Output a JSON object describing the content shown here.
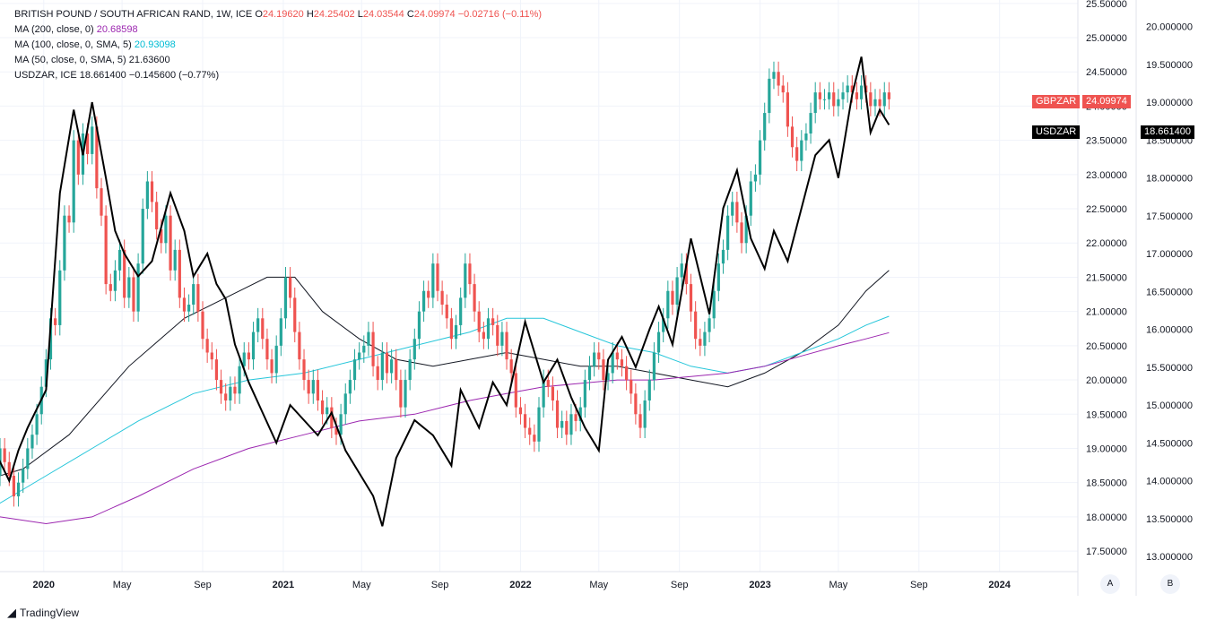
{
  "legend": {
    "symbol": "BRITISH POUND / SOUTH AFRICAN RAND, 1W, ICE",
    "open_label": "O",
    "open": "24.19620",
    "high_label": "H",
    "high": "24.25402",
    "low_label": "L",
    "low": "24.03544",
    "close_label": "C",
    "close": "24.09974",
    "change": "−0.02716 (−0.11%)",
    "ma200_label": "MA (200, close, 0)",
    "ma200_value": "20.68598",
    "ma100_label": "MA (100, close, 0, SMA, 5)",
    "ma100_value": "20.93098",
    "ma50_label": "MA (50, close, 0, SMA, 5)",
    "ma50_value": "21.63600",
    "usdzar_label": "USDZAR, ICE",
    "usdzar_value": "18.661400",
    "usdzar_change": "−0.145600 (−0.77%)"
  },
  "tags": {
    "gbp_name": "GBPZAR",
    "gbp_value": "24.09974",
    "usd_name": "USDZAR",
    "usd_value": "18.661400"
  },
  "buttons": {
    "a": "A",
    "b": "B"
  },
  "brand": "TradingView",
  "colors": {
    "up": "#26a69a",
    "down": "#ef5350",
    "ma50": "#131722",
    "ma100": "#26c6da",
    "ma200": "#9c27b0",
    "usdzar": "#000000",
    "grid": "#f0f3fa"
  },
  "chart_data": {
    "type": "candlestick",
    "title": "BRITISH POUND / SOUTH AFRICAN RAND, 1W, ICE",
    "primary_axis": {
      "ticks": [
        "17.50000",
        "18.00000",
        "18.50000",
        "19.00000",
        "19.50000",
        "20.00000",
        "20.50000",
        "21.00000",
        "21.50000",
        "22.00000",
        "22.50000",
        "23.00000",
        "23.50000",
        "24.00000",
        "24.50000",
        "25.00000",
        "25.50000"
      ],
      "ylim": [
        17.2,
        25.55
      ]
    },
    "secondary_axis": {
      "ticks": [
        "13.000000",
        "13.500000",
        "14.000000",
        "14.500000",
        "15.000000",
        "15.500000",
        "16.000000",
        "16.500000",
        "17.000000",
        "17.500000",
        "18.000000",
        "18.500000",
        "19.000000",
        "19.500000",
        "20.000000"
      ],
      "ylim": [
        12.8,
        20.35
      ]
    },
    "x_ticks": [
      {
        "label": "2020",
        "t": 19.5,
        "bold": true
      },
      {
        "label": "May",
        "t": 36.5,
        "bold": false
      },
      {
        "label": "Sep",
        "t": 54,
        "bold": false
      },
      {
        "label": "2021",
        "t": 71.5,
        "bold": true
      },
      {
        "label": "May",
        "t": 88.5,
        "bold": false
      },
      {
        "label": "Sep",
        "t": 105.5,
        "bold": false
      },
      {
        "label": "2022",
        "t": 123,
        "bold": true
      },
      {
        "label": "May",
        "t": 140,
        "bold": false
      },
      {
        "label": "Sep",
        "t": 157.5,
        "bold": false
      },
      {
        "label": "2023",
        "t": 175,
        "bold": true
      },
      {
        "label": "May",
        "t": 192,
        "bold": false
      },
      {
        "label": "Sep",
        "t": 209.5,
        "bold": false
      },
      {
        "label": "2024",
        "t": 227,
        "bold": true
      }
    ],
    "x_range": [
      10,
      244
    ],
    "gbpzar_close": [
      19.6,
      19.2,
      19.4,
      18.9,
      19.0,
      18.8,
      19.1,
      18.7,
      18.9,
      18.6,
      19.0,
      18.8,
      18.6,
      18.3,
      18.5,
      18.7,
      19.0,
      19.2,
      19.5,
      19.9,
      20.3,
      20.9,
      20.8,
      21.6,
      22.4,
      22.3,
      23.5,
      23.0,
      23.6,
      23.3,
      23.7,
      22.8,
      22.4,
      21.4,
      21.3,
      21.6,
      21.9,
      21.2,
      21.5,
      21.0,
      21.7,
      22.5,
      22.9,
      22.6,
      22.2,
      22.0,
      22.4,
      21.6,
      21.9,
      21.2,
      21.0,
      21.1,
      21.4,
      21.0,
      20.6,
      20.4,
      20.3,
      20.0,
      19.8,
      19.7,
      19.9,
      19.8,
      20.2,
      20.4,
      20.3,
      20.7,
      20.9,
      20.6,
      20.3,
      20.1,
      20.5,
      20.9,
      21.5,
      21.2,
      20.7,
      20.3,
      20.0,
      19.8,
      20.0,
      19.7,
      19.5,
      19.6,
      19.3,
      19.2,
      19.5,
      19.8,
      20.0,
      20.3,
      20.4,
      20.5,
      20.7,
      20.2,
      20.0,
      20.4,
      20.1,
      20.3,
      20.0,
      19.6,
      20.0,
      20.3,
      20.6,
      21.0,
      21.3,
      21.2,
      21.7,
      21.3,
      21.1,
      20.9,
      20.6,
      20.8,
      21.2,
      21.7,
      21.4,
      21.0,
      20.7,
      20.6,
      20.9,
      20.8,
      20.5,
      20.7,
      20.3,
      20.1,
      19.6,
      19.5,
      19.3,
      19.2,
      19.1,
      19.6,
      20.0,
      19.9,
      19.7,
      19.3,
      19.4,
      19.2,
      19.5,
      19.4,
      19.6,
      20.0,
      20.2,
      20.4,
      20.3,
      20.0,
      20.1,
      20.4,
      20.3,
      20.2,
      20.0,
      19.8,
      19.5,
      19.3,
      19.7,
      20.0,
      20.4,
      20.7,
      20.9,
      21.3,
      21.1,
      21.5,
      21.7,
      21.4,
      21.0,
      20.6,
      20.5,
      20.7,
      20.9,
      21.3,
      21.7,
      21.9,
      22.4,
      22.6,
      22.3,
      22.0,
      22.4,
      22.9,
      23.0,
      23.5,
      23.9,
      24.4,
      24.5,
      24.3,
      24.2,
      23.7,
      23.4,
      23.2,
      23.5,
      23.6,
      23.9,
      24.2,
      24.1,
      24.1,
      24.2,
      24.0,
      24.1,
      24.2,
      24.3,
      24.2,
      24.1,
      24.3,
      24.2,
      24.0,
      24.1,
      24.0,
      24.2,
      24.1,
      24.1,
      24.0,
      24.2,
      24.1,
      24.0,
      24.1,
      24.2,
      24.1,
      24.0,
      24.1,
      24.2,
      24.1,
      24.0,
      24.1,
      24.1,
      24.1,
      24.0,
      24.1,
      24.1,
      24.1,
      24.0,
      24.1,
      24.1,
      24.1,
      24.1,
      24.1,
      24.1,
      24.1,
      24.0,
      24.1,
      24.1,
      24.1,
      24.1,
      24.1,
      24.1,
      24.1,
      24.1,
      24.1,
      24.1
    ],
    "series": [
      {
        "name": "USDZAR, ICE",
        "axis": "secondary",
        "points": [
          [
            0,
            15.0
          ],
          [
            4,
            15.2
          ],
          [
            8,
            14.5
          ],
          [
            12,
            14.0
          ],
          [
            14,
            14.4
          ],
          [
            16,
            14.7
          ],
          [
            20,
            15.2
          ],
          [
            23,
            17.8
          ],
          [
            26,
            18.9
          ],
          [
            28,
            18.3
          ],
          [
            30,
            19.0
          ],
          [
            33,
            18.0
          ],
          [
            35,
            17.3
          ],
          [
            37,
            17.0
          ],
          [
            40,
            16.7
          ],
          [
            43,
            16.9
          ],
          [
            47,
            17.8
          ],
          [
            50,
            17.3
          ],
          [
            52,
            16.7
          ],
          [
            55,
            17.0
          ],
          [
            57,
            16.6
          ],
          [
            59,
            16.4
          ],
          [
            61,
            15.8
          ],
          [
            64,
            15.3
          ],
          [
            67,
            14.9
          ],
          [
            70,
            14.5
          ],
          [
            73,
            15.0
          ],
          [
            76,
            14.8
          ],
          [
            79,
            14.6
          ],
          [
            82,
            14.9
          ],
          [
            85,
            14.4
          ],
          [
            88,
            14.1
          ],
          [
            91,
            13.8
          ],
          [
            93,
            13.4
          ],
          [
            96,
            14.3
          ],
          [
            100,
            14.8
          ],
          [
            104,
            14.6
          ],
          [
            108,
            14.2
          ],
          [
            110,
            15.2
          ],
          [
            114,
            14.7
          ],
          [
            117,
            15.3
          ],
          [
            120,
            15.0
          ],
          [
            124,
            16.1
          ],
          [
            128,
            15.3
          ],
          [
            131,
            15.6
          ],
          [
            134,
            15.1
          ],
          [
            137,
            14.7
          ],
          [
            140,
            14.4
          ],
          [
            142,
            15.6
          ],
          [
            145,
            15.9
          ],
          [
            148,
            15.5
          ],
          [
            151,
            16.0
          ],
          [
            153,
            16.3
          ],
          [
            156,
            15.8
          ],
          [
            160,
            17.2
          ],
          [
            162,
            16.7
          ],
          [
            164,
            16.2
          ],
          [
            167,
            17.6
          ],
          [
            170,
            18.1
          ],
          [
            173,
            17.2
          ],
          [
            176,
            16.8
          ],
          [
            178,
            17.3
          ],
          [
            181,
            16.9
          ],
          [
            184,
            17.6
          ],
          [
            187,
            18.3
          ],
          [
            190,
            18.5
          ],
          [
            192,
            18.0
          ],
          [
            195,
            19.1
          ],
          [
            197,
            19.6
          ],
          [
            199,
            18.6
          ],
          [
            201,
            18.9
          ],
          [
            203,
            18.7
          ]
        ]
      },
      {
        "name": "MA (50, close, 0, SMA, 5)",
        "axis": "primary",
        "points": [
          [
            0,
            18.4
          ],
          [
            15,
            18.7
          ],
          [
            25,
            19.2
          ],
          [
            38,
            20.2
          ],
          [
            50,
            20.9
          ],
          [
            62,
            21.3
          ],
          [
            68,
            21.5
          ],
          [
            74,
            21.5
          ],
          [
            80,
            21.0
          ],
          [
            88,
            20.6
          ],
          [
            96,
            20.3
          ],
          [
            104,
            20.2
          ],
          [
            112,
            20.3
          ],
          [
            120,
            20.4
          ],
          [
            128,
            20.3
          ],
          [
            136,
            20.2
          ],
          [
            144,
            20.2
          ],
          [
            152,
            20.1
          ],
          [
            160,
            20.0
          ],
          [
            168,
            19.9
          ],
          [
            176,
            20.1
          ],
          [
            184,
            20.4
          ],
          [
            192,
            20.8
          ],
          [
            198,
            21.3
          ],
          [
            203,
            21.6
          ]
        ]
      },
      {
        "name": "MA (100, close, 0, SMA, 5)",
        "axis": "primary",
        "points": [
          [
            0,
            18.0
          ],
          [
            10,
            18.2
          ],
          [
            20,
            18.6
          ],
          [
            30,
            19.0
          ],
          [
            40,
            19.4
          ],
          [
            52,
            19.8
          ],
          [
            64,
            20.0
          ],
          [
            76,
            20.1
          ],
          [
            88,
            20.3
          ],
          [
            100,
            20.5
          ],
          [
            112,
            20.7
          ],
          [
            120,
            20.9
          ],
          [
            128,
            20.9
          ],
          [
            136,
            20.7
          ],
          [
            144,
            20.5
          ],
          [
            152,
            20.4
          ],
          [
            160,
            20.2
          ],
          [
            168,
            20.1
          ],
          [
            176,
            20.2
          ],
          [
            184,
            20.4
          ],
          [
            192,
            20.6
          ],
          [
            198,
            20.8
          ],
          [
            203,
            20.93
          ]
        ]
      },
      {
        "name": "MA (200, close, 0)",
        "axis": "primary",
        "points": [
          [
            0,
            18.3
          ],
          [
            10,
            18.0
          ],
          [
            20,
            17.9
          ],
          [
            30,
            18.0
          ],
          [
            40,
            18.3
          ],
          [
            52,
            18.7
          ],
          [
            64,
            19.0
          ],
          [
            76,
            19.2
          ],
          [
            88,
            19.4
          ],
          [
            100,
            19.5
          ],
          [
            112,
            19.7
          ],
          [
            120,
            19.8
          ],
          [
            128,
            19.9
          ],
          [
            136,
            19.95
          ],
          [
            144,
            20.0
          ],
          [
            152,
            20.0
          ],
          [
            160,
            20.05
          ],
          [
            168,
            20.1
          ],
          [
            176,
            20.2
          ],
          [
            184,
            20.35
          ],
          [
            192,
            20.5
          ],
          [
            198,
            20.6
          ],
          [
            203,
            20.69
          ]
        ]
      }
    ]
  }
}
